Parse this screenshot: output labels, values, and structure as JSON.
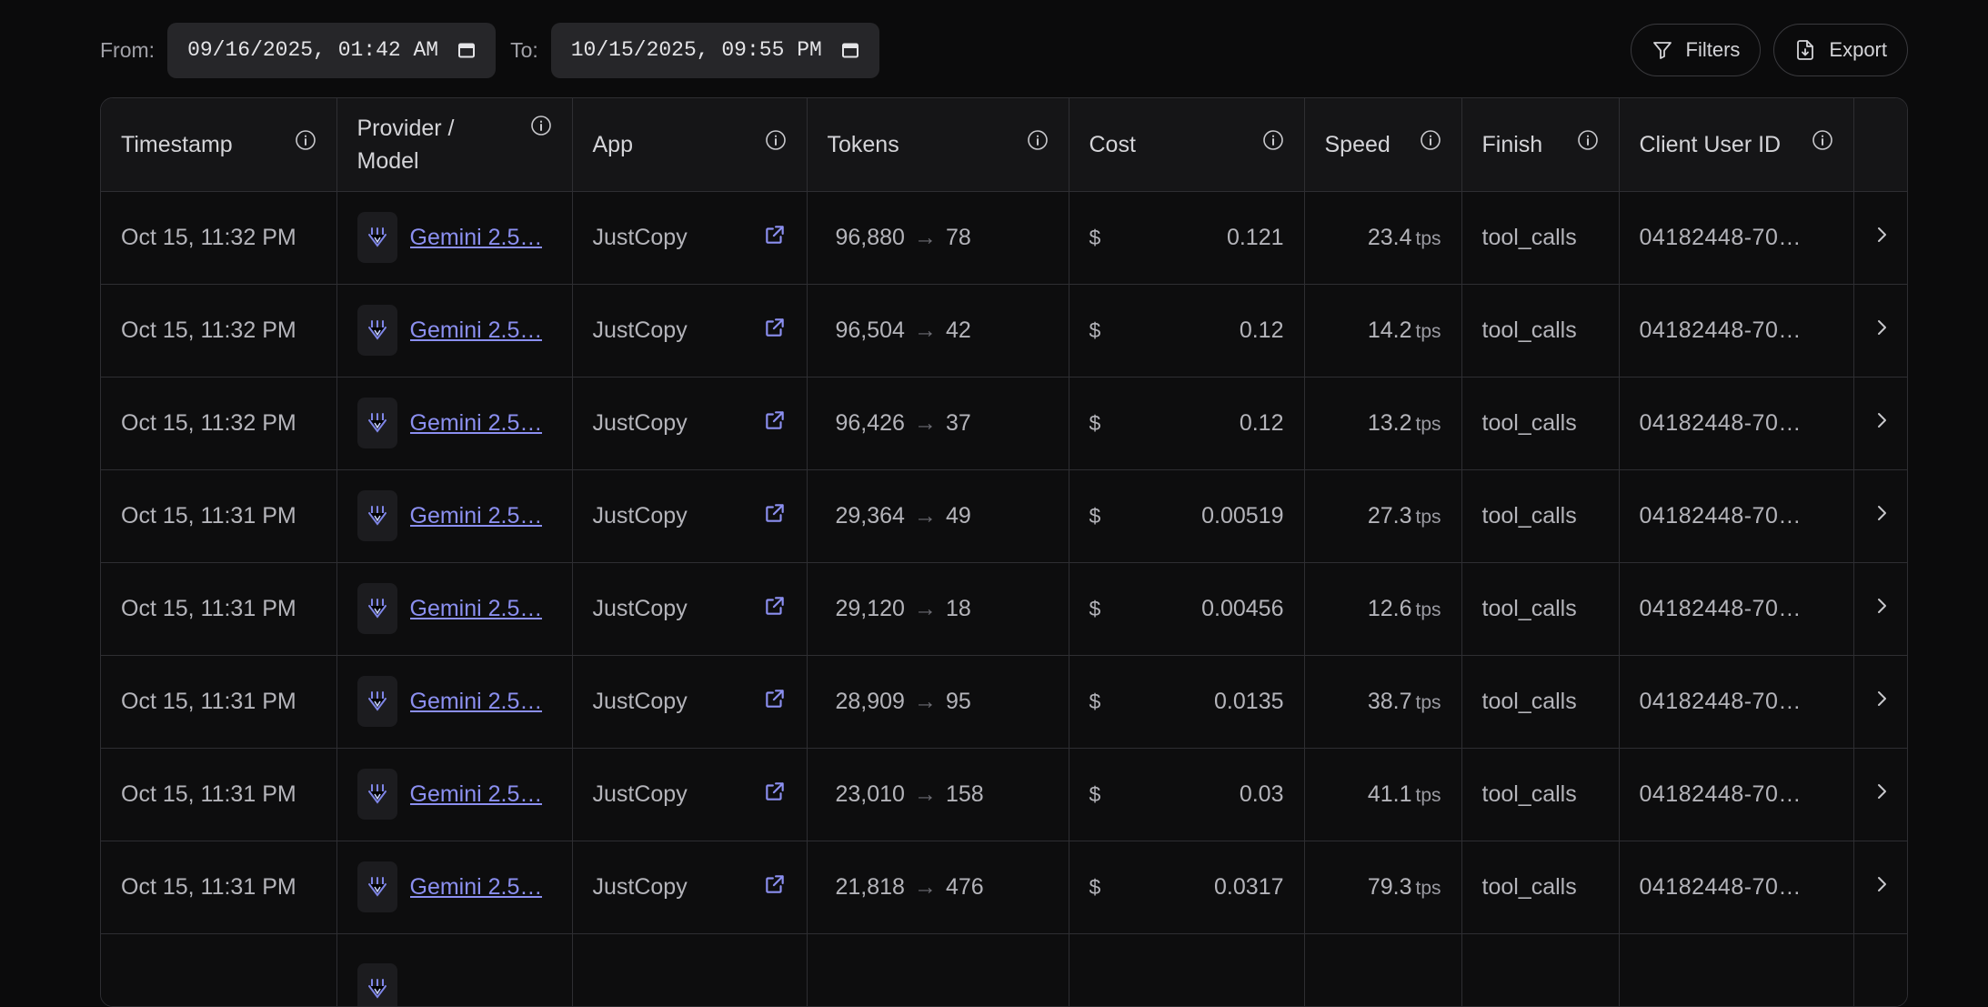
{
  "filters": {
    "from_label": "From:",
    "from_value": "09/16/2025, 01:42 AM",
    "to_label": "To:",
    "to_value": "10/15/2025, 09:55 PM",
    "filters_button": "Filters",
    "export_button": "Export"
  },
  "table": {
    "headers": {
      "timestamp": "Timestamp",
      "provider": "Provider / Model",
      "app": "App",
      "tokens": "Tokens",
      "cost": "Cost",
      "speed": "Speed",
      "finish": "Finish",
      "client_user_id": "Client User ID"
    },
    "currency": "$",
    "speed_unit": "tps",
    "arrow": "→",
    "rows": [
      {
        "timestamp": "Oct 15, 11:32 PM",
        "model": "Gemini 2.5…",
        "app": "JustCopy",
        "tokens_in": "96,880",
        "tokens_out": "78",
        "cost": "0.121",
        "speed": "23.4",
        "finish": "tool_calls",
        "uid": "04182448-70…"
      },
      {
        "timestamp": "Oct 15, 11:32 PM",
        "model": "Gemini 2.5…",
        "app": "JustCopy",
        "tokens_in": "96,504",
        "tokens_out": "42",
        "cost": "0.12",
        "speed": "14.2",
        "finish": "tool_calls",
        "uid": "04182448-70…"
      },
      {
        "timestamp": "Oct 15, 11:32 PM",
        "model": "Gemini 2.5…",
        "app": "JustCopy",
        "tokens_in": "96,426",
        "tokens_out": "37",
        "cost": "0.12",
        "speed": "13.2",
        "finish": "tool_calls",
        "uid": "04182448-70…"
      },
      {
        "timestamp": "Oct 15, 11:31 PM",
        "model": "Gemini 2.5…",
        "app": "JustCopy",
        "tokens_in": "29,364",
        "tokens_out": "49",
        "cost": "0.00519",
        "speed": "27.3",
        "finish": "tool_calls",
        "uid": "04182448-70…"
      },
      {
        "timestamp": "Oct 15, 11:31 PM",
        "model": "Gemini 2.5…",
        "app": "JustCopy",
        "tokens_in": "29,120",
        "tokens_out": "18",
        "cost": "0.00456",
        "speed": "12.6",
        "finish": "tool_calls",
        "uid": "04182448-70…"
      },
      {
        "timestamp": "Oct 15, 11:31 PM",
        "model": "Gemini 2.5…",
        "app": "JustCopy",
        "tokens_in": "28,909",
        "tokens_out": "95",
        "cost": "0.0135",
        "speed": "38.7",
        "finish": "tool_calls",
        "uid": "04182448-70…"
      },
      {
        "timestamp": "Oct 15, 11:31 PM",
        "model": "Gemini 2.5…",
        "app": "JustCopy",
        "tokens_in": "23,010",
        "tokens_out": "158",
        "cost": "0.03",
        "speed": "41.1",
        "finish": "tool_calls",
        "uid": "04182448-70…"
      },
      {
        "timestamp": "Oct 15, 11:31 PM",
        "model": "Gemini 2.5…",
        "app": "JustCopy",
        "tokens_in": "21,818",
        "tokens_out": "476",
        "cost": "0.0317",
        "speed": "79.3",
        "finish": "tool_calls",
        "uid": "04182448-70…"
      },
      {
        "timestamp": "",
        "model": "",
        "app": "",
        "tokens_in": "",
        "tokens_out": "",
        "cost": "",
        "speed": "",
        "finish": "",
        "uid": ""
      }
    ]
  },
  "icons": {
    "calendar": "calendar-icon",
    "filter": "filter-icon",
    "export": "file-download-icon",
    "info": "info-icon",
    "provider_logo": "provider-logo-icon",
    "external_link": "external-link-icon",
    "chevron": "chevron-right-icon"
  },
  "colors": {
    "background": "#0b0b0c",
    "link": "#8b8ff0",
    "border": "#2e2e32"
  }
}
